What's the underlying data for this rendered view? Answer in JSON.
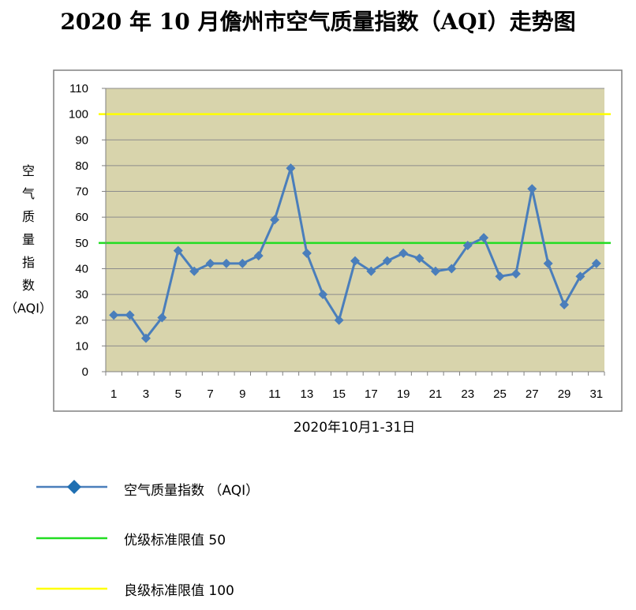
{
  "title": "2020 年 10 月儋州市空气质量指数（AQI）走势图",
  "chart_data": {
    "type": "line",
    "title": "2020 年 10 月儋州市空气质量指数（AQI）走势图",
    "xlabel": "2020年10月1-31日",
    "ylabel_chars": [
      "空",
      "气",
      "质",
      "量",
      "指",
      "数",
      "（AQI）"
    ],
    "x": [
      1,
      2,
      3,
      4,
      5,
      6,
      7,
      8,
      9,
      10,
      11,
      12,
      13,
      14,
      15,
      16,
      17,
      18,
      19,
      20,
      21,
      22,
      23,
      24,
      25,
      26,
      27,
      28,
      29,
      30,
      31
    ],
    "x_tick_labels": [
      "1",
      "3",
      "5",
      "7",
      "9",
      "11",
      "13",
      "15",
      "17",
      "19",
      "21",
      "23",
      "25",
      "27",
      "29",
      "31"
    ],
    "y_tick_labels": [
      "0",
      "10",
      "20",
      "30",
      "40",
      "50",
      "60",
      "70",
      "80",
      "90",
      "100",
      "110"
    ],
    "ylim": [
      0,
      110
    ],
    "y_step": 10,
    "grid": true,
    "series": [
      {
        "name": "空气质量指数 （AQI）",
        "color": "#4a7ebb",
        "marker": "diamond",
        "values": [
          22,
          22,
          13,
          21,
          47,
          39,
          42,
          42,
          42,
          45,
          59,
          79,
          46,
          30,
          20,
          43,
          39,
          43,
          46,
          44,
          39,
          40,
          49,
          52,
          37,
          38,
          71,
          42,
          26,
          37,
          42
        ]
      }
    ],
    "reference_lines": [
      {
        "name": "优级标准限值  50",
        "value": 50,
        "color": "#22dd22"
      },
      {
        "name": "良级标准限值  100",
        "value": 100,
        "color": "#ffff00"
      }
    ],
    "plot_background": "#d8d4ac",
    "legend_position": "bottom-left"
  }
}
